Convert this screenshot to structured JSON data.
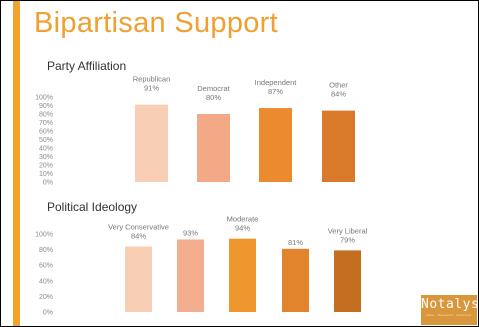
{
  "slide": {
    "title": "Bipartisan Support",
    "logo": {
      "text": "Notalys",
      "tagline": "Data · Research · Solutions"
    }
  },
  "chart_data": [
    {
      "type": "bar",
      "title": "Party Affiliation",
      "categories": [
        "Republican",
        "Democrat",
        "Independent",
        "Other"
      ],
      "values": [
        91,
        80,
        87,
        84
      ],
      "value_labels": [
        "91%",
        "80%",
        "87%",
        "84%"
      ],
      "colors": [
        "#f8cfb4",
        "#f3a985",
        "#ec8a2f",
        "#d97a2a"
      ],
      "ylim": [
        0,
        100
      ],
      "yticks": [
        "0%",
        "10%",
        "20%",
        "30%",
        "40%",
        "50%",
        "60%",
        "70%",
        "80%",
        "90%",
        "100%"
      ],
      "grid": false,
      "legend": "none"
    },
    {
      "type": "bar",
      "title": "Political Ideology",
      "categories": [
        "Very Conservative",
        "",
        "Moderate",
        "",
        "Very Liberal"
      ],
      "values": [
        84,
        93,
        94,
        81,
        79
      ],
      "value_labels": [
        "84%",
        "93%",
        "94%",
        "81%",
        "79%"
      ],
      "colors": [
        "#f8cfb4",
        "#f3ae90",
        "#ef972e",
        "#e2842b",
        "#c46e22"
      ],
      "ylim": [
        0,
        100
      ],
      "yticks": [
        "0%",
        "20%",
        "40%",
        "60%",
        "80%",
        "100%"
      ],
      "grid": false,
      "legend": "none"
    }
  ]
}
